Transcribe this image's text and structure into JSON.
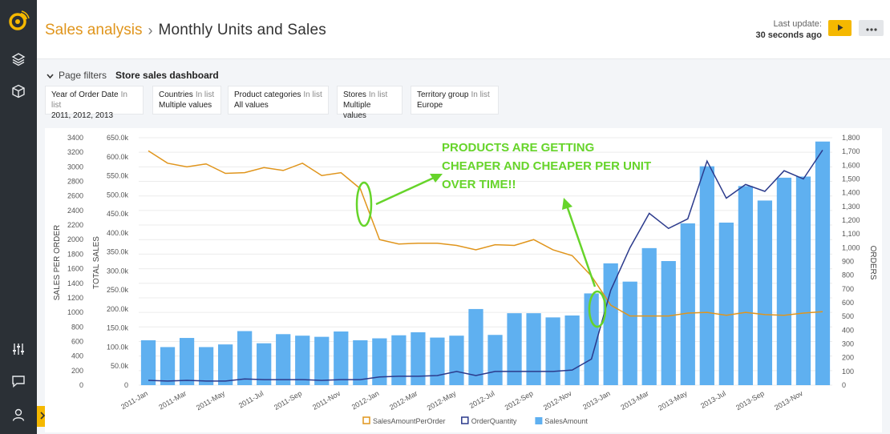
{
  "breadcrumb": {
    "parent": "Sales analysis",
    "separator": "›",
    "current": "Monthly Units and Sales"
  },
  "last_update": {
    "label": "Last update:",
    "value": "30 seconds ago"
  },
  "filters": {
    "toggle_label": "Page filters",
    "dashboard_name": "Store sales dashboard",
    "cards": [
      {
        "name": "Year of Order Date",
        "op": "In list",
        "value": "2011, 2012, 2013"
      },
      {
        "name": "Countries",
        "op": "In list",
        "value": "Multiple values"
      },
      {
        "name": "Product categories",
        "op": "In list",
        "value": "All values"
      },
      {
        "name": "Stores",
        "op": "In list",
        "value": "Multiple values"
      },
      {
        "name": "Territory group",
        "op": "In list",
        "value": "Europe"
      }
    ]
  },
  "icons": {
    "sidebar": [
      "logo-icon",
      "layers-icon",
      "cube-icon",
      "sliders-icon",
      "chat-icon",
      "user-icon"
    ],
    "header": [
      "play-icon",
      "more-icon",
      "chevron-down-icon",
      "chevron-right-icon"
    ]
  },
  "colors": {
    "accent": "#f5b800",
    "breadcrumb_parent": "#e0951c",
    "sales_per_order": "#e0951c",
    "order_quantity": "#2b3a8c",
    "sales_amount": "#5fb0f0",
    "annotation": "#66d42a"
  },
  "chart_data": {
    "type": "bar",
    "annotation": [
      "PRODUCTS ARE GETTING",
      "CHEAPER AND CHEAPER PER UNIT",
      "OVER TIME!!"
    ],
    "categories": [
      "2011-Jan",
      "2011-Feb",
      "2011-Mar",
      "2011-Apr",
      "2011-May",
      "2011-Jun",
      "2011-Jul",
      "2011-Aug",
      "2011-Sep",
      "2011-Oct",
      "2011-Nov",
      "2011-Dec",
      "2012-Jan",
      "2012-Feb",
      "2012-Mar",
      "2012-Apr",
      "2012-May",
      "2012-Jun",
      "2012-Jul",
      "2012-Aug",
      "2012-Sep",
      "2012-Oct",
      "2012-Nov",
      "2012-Dec",
      "2013-Jan",
      "2013-Feb",
      "2013-Mar",
      "2013-Apr",
      "2013-May",
      "2013-Jun",
      "2013-Jul",
      "2013-Aug",
      "2013-Sep",
      "2013-Oct",
      "2013-Nov",
      "2013-Dec"
    ],
    "x_tick_labels": [
      "2011-Jan",
      "2011-Mar",
      "2011-May",
      "2011-Jul",
      "2011-Sep",
      "2011-Nov",
      "2012-Jan",
      "2012-Mar",
      "2012-May",
      "2012-Jul",
      "2012-Sep",
      "2012-Nov",
      "2013-Jan",
      "2013-Mar",
      "2013-May",
      "2013-Jul",
      "2013-Sep",
      "2013-Nov"
    ],
    "series": [
      {
        "name": "SalesAmountPerOrder",
        "kind": "line",
        "axis": "sales_per_order",
        "values": [
          3220,
          3050,
          3000,
          3040,
          2910,
          2920,
          2990,
          2950,
          3050,
          2880,
          2920,
          2700,
          2000,
          1940,
          1950,
          1950,
          1920,
          1860,
          1930,
          1920,
          2000,
          1860,
          1780,
          1500,
          1100,
          950,
          950,
          950,
          990,
          1000,
          960,
          1000,
          970,
          960,
          990,
          1010
        ]
      },
      {
        "name": "OrderQuantity",
        "kind": "line",
        "axis": "orders",
        "values": [
          35,
          30,
          35,
          30,
          30,
          45,
          40,
          40,
          40,
          35,
          40,
          40,
          60,
          65,
          65,
          70,
          100,
          70,
          100,
          100,
          100,
          100,
          110,
          190,
          690,
          1000,
          1250,
          1140,
          1210,
          1630,
          1360,
          1460,
          1410,
          1560,
          1500,
          1710
        ]
      },
      {
        "name": "SalesAmount",
        "kind": "bar",
        "axis": "total_sales",
        "values": [
          118000,
          100000,
          124000,
          100000,
          107000,
          142000,
          110000,
          134000,
          130000,
          127000,
          141000,
          118000,
          123000,
          131000,
          139000,
          125000,
          130000,
          200000,
          132000,
          189000,
          189000,
          178000,
          183000,
          241000,
          320000,
          272000,
          360000,
          326000,
          425000,
          575000,
          427000,
          523000,
          485000,
          545000,
          548000,
          640000
        ]
      }
    ],
    "axes": {
      "sales_per_order": {
        "title": "SALES PER ORDER",
        "ylim": [
          0,
          3400
        ],
        "ticks": [
          "0",
          "200",
          "400",
          "600",
          "800",
          "1000",
          "1200",
          "1400",
          "1600",
          "1800",
          "2000",
          "2200",
          "2400",
          "2600",
          "2800",
          "3000",
          "3200",
          "3400"
        ]
      },
      "total_sales": {
        "title": "TOTAL SALES",
        "ylim": [
          0,
          650000
        ],
        "ticks": [
          "0",
          "50.0k",
          "100.0k",
          "150.0k",
          "200.0k",
          "250.0k",
          "300.0k",
          "350.0k",
          "400.0k",
          "450.0k",
          "500.0k",
          "550.0k",
          "600.0k",
          "650.0k"
        ]
      },
      "orders": {
        "title": "ORDERS",
        "ylim": [
          0,
          1800
        ],
        "ticks": [
          "0",
          "100",
          "200",
          "300",
          "400",
          "500",
          "600",
          "700",
          "800",
          "900",
          "1,000",
          "1,100",
          "1,200",
          "1,300",
          "1,400",
          "1,500",
          "1,600",
          "1,700",
          "1,800"
        ]
      }
    },
    "legend": {
      "position": "bottom",
      "entries": [
        "SalesAmountPerOrder",
        "OrderQuantity",
        "SalesAmount"
      ]
    },
    "grid": true
  }
}
